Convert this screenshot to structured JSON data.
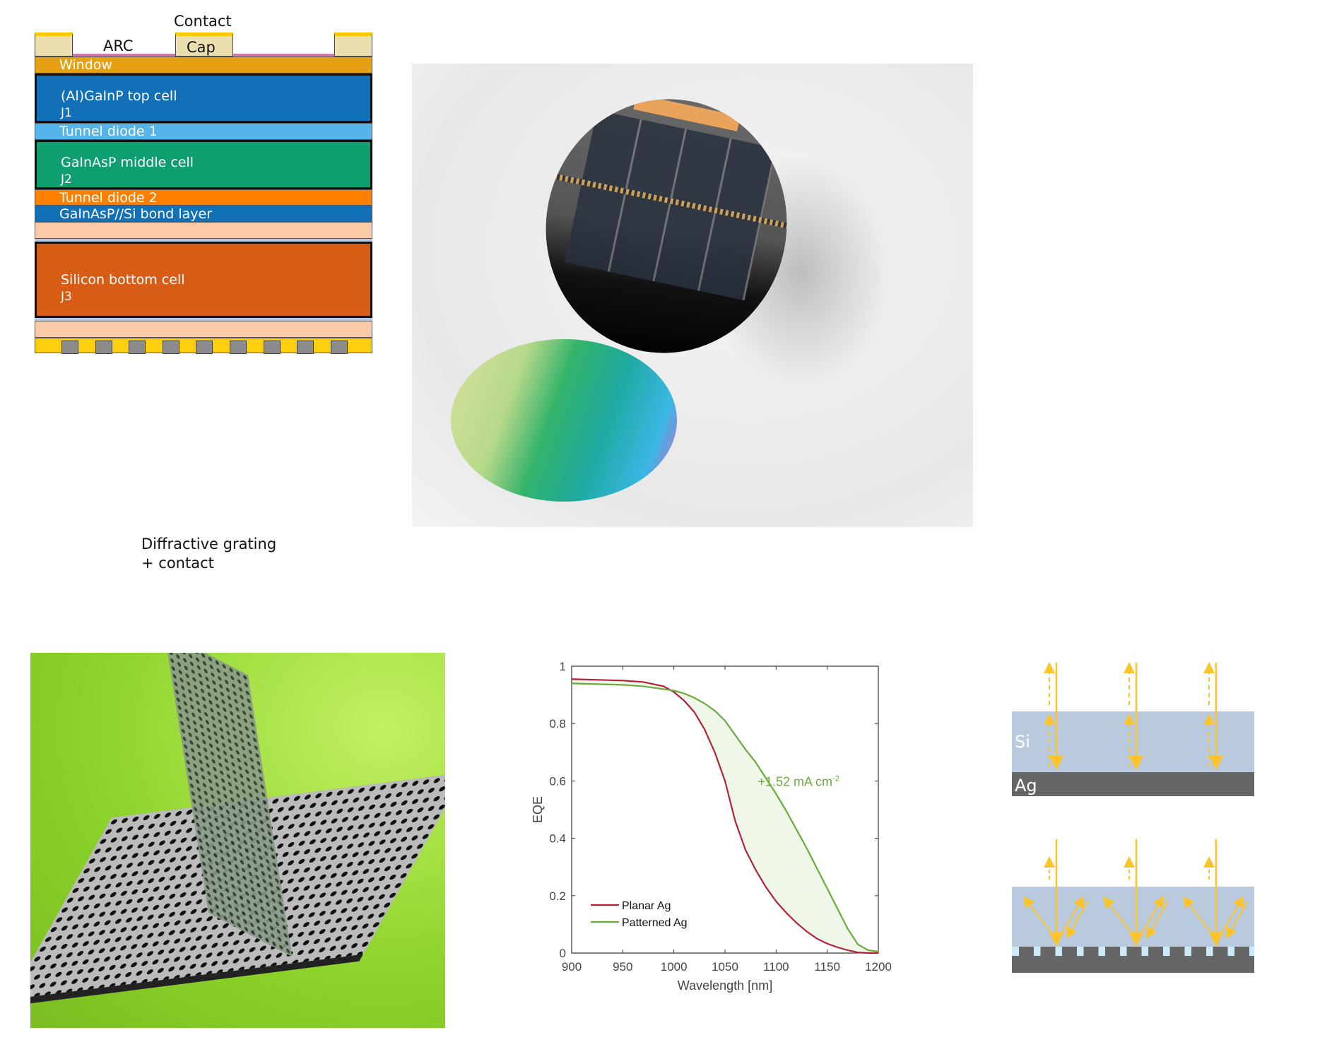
{
  "stack_diagram": {
    "top_labels": {
      "contact": "Contact",
      "arc": "ARC",
      "cap": "Cap"
    },
    "layers": [
      {
        "name": "Window",
        "sub": "",
        "color": "#e6a013"
      },
      {
        "name": "(Al)GaInP top cell",
        "sub": "J1",
        "color": "#1270b8"
      },
      {
        "name": "Tunnel diode 1",
        "sub": "",
        "color": "#55b4ea"
      },
      {
        "name": "GaInAsP middle cell",
        "sub": "J2",
        "color": "#0e9e70"
      },
      {
        "name": "Tunnel diode 2",
        "sub": "",
        "color": "#ff8000"
      },
      {
        "name": "GaInAsP//Si bond layer",
        "sub": "",
        "color": "#1270b8"
      },
      {
        "name": "Silicon bottom cell",
        "sub": "J3",
        "color": "#d75c16"
      }
    ],
    "bottom_label_1": "Diffractive grating",
    "bottom_label_2": "+ contact"
  },
  "schematic": {
    "si_label": "Si",
    "ag_label": "Ag",
    "si_color": "#b9cadf",
    "ag_color": "#666666",
    "ray_color": "#fcc42a"
  },
  "chart_data": {
    "type": "line",
    "xlabel": "Wavelength [nm]",
    "ylabel": "EQE",
    "xlim": [
      900,
      1200
    ],
    "ylim": [
      0,
      1
    ],
    "xticks": [
      900,
      950,
      1000,
      1050,
      1100,
      1150,
      1200
    ],
    "yticks": [
      0,
      0.2,
      0.4,
      0.6,
      0.8,
      1
    ],
    "ytick_labels": [
      "0",
      "0.2",
      "0.4",
      "0.6",
      "0.8",
      "1"
    ],
    "grid": false,
    "legend_placement": "bottom-left",
    "annotation": {
      "text": "+1.52 mA cm",
      "sup": "-2",
      "color": "#6aab3e"
    },
    "fill_between": {
      "color": "#eef7e8"
    },
    "x": [
      900,
      950,
      970,
      990,
      1000,
      1010,
      1020,
      1030,
      1040,
      1050,
      1060,
      1070,
      1080,
      1090,
      1100,
      1110,
      1120,
      1130,
      1140,
      1150,
      1160,
      1170,
      1180,
      1190,
      1200
    ],
    "series": [
      {
        "name": "Planar Ag",
        "color": "#b5213a",
        "values": [
          0.955,
          0.95,
          0.945,
          0.93,
          0.91,
          0.88,
          0.84,
          0.78,
          0.7,
          0.6,
          0.46,
          0.36,
          0.29,
          0.23,
          0.18,
          0.14,
          0.105,
          0.075,
          0.05,
          0.033,
          0.02,
          0.01,
          0.002,
          0.0,
          0.0
        ]
      },
      {
        "name": "Patterned Ag",
        "color": "#6aab3e",
        "values": [
          0.94,
          0.935,
          0.93,
          0.92,
          0.915,
          0.905,
          0.89,
          0.87,
          0.845,
          0.81,
          0.76,
          0.71,
          0.665,
          0.61,
          0.555,
          0.495,
          0.43,
          0.365,
          0.295,
          0.225,
          0.155,
          0.085,
          0.03,
          0.01,
          0.005
        ]
      }
    ]
  }
}
